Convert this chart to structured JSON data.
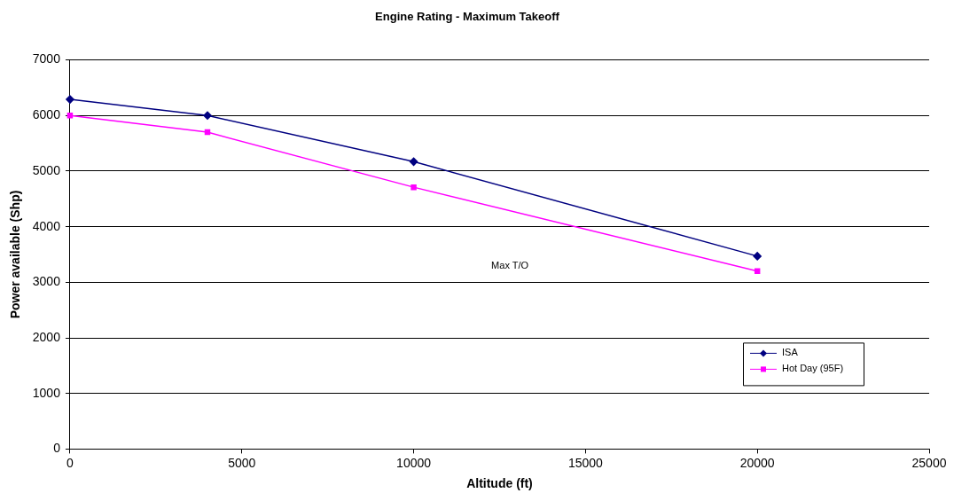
{
  "chart_data": {
    "type": "line",
    "title": "Engine Rating - Maximum Takeoff",
    "xlabel": "Altitude (ft)",
    "ylabel": "Power available (Shp)",
    "x": [
      0,
      4000,
      10000,
      20000
    ],
    "series": [
      {
        "name": "ISA",
        "color": "#000080",
        "marker": "diamond",
        "values": [
          6290,
          6000,
          5170,
          3470
        ]
      },
      {
        "name": "Hot Day (95F)",
        "color": "#ff00ff",
        "marker": "square",
        "values": [
          6000,
          5700,
          4710,
          3200
        ]
      }
    ],
    "xlim": [
      0,
      25000
    ],
    "xticks": [
      0,
      5000,
      10000,
      15000,
      20000,
      25000
    ],
    "ylim": [
      0,
      7000
    ],
    "yticks": [
      0,
      1000,
      2000,
      3000,
      4000,
      5000,
      6000,
      7000
    ],
    "grid": "y",
    "legend": "bottom right",
    "line_style": "solid",
    "annotations": [
      "Max T/O"
    ]
  }
}
